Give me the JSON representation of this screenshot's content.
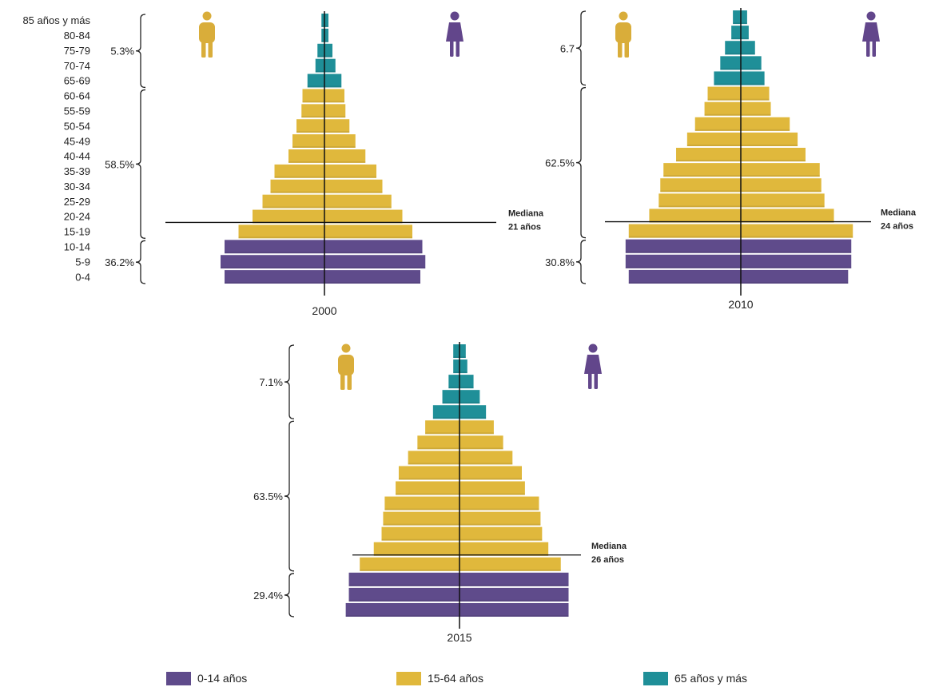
{
  "colors": {
    "young": "#5f4b8b",
    "working": "#e0b83c",
    "old": "#1f8f98",
    "male_icon": "#d9ad3a",
    "female_icon": "#62468b",
    "axis": "#111111"
  },
  "chart_data": {
    "type": "population-pyramid",
    "age_groups": [
      "85 años y más",
      "80-84",
      "75-79",
      "70-74",
      "65-69",
      "60-64",
      "55-59",
      "50-54",
      "45-49",
      "40-44",
      "35-39",
      "30-34",
      "25-29",
      "20-24",
      "15-19",
      "10-14",
      "5-9",
      "0-4"
    ],
    "series": [
      {
        "year": "2000",
        "left": [
          0.15,
          0.15,
          0.35,
          0.45,
          0.85,
          1.1,
          1.15,
          1.4,
          1.6,
          1.8,
          2.5,
          2.7,
          3.1,
          3.6,
          4.3,
          5.0,
          5.2,
          5.0
        ],
        "right": [
          0.2,
          0.2,
          0.4,
          0.55,
          0.85,
          1.0,
          1.05,
          1.25,
          1.55,
          2.05,
          2.6,
          2.9,
          3.35,
          3.9,
          4.4,
          4.9,
          5.05,
          4.8
        ],
        "brackets": [
          {
            "label": "5.3%",
            "from": "85 años y más",
            "to": "65-69"
          },
          {
            "label": "58.5%",
            "from": "60-64",
            "to": "15-19"
          },
          {
            "label": "36.2%",
            "from": "10-14",
            "to": "0-4"
          }
        ],
        "median_label": [
          "Mediana",
          "21 años"
        ],
        "median_at": "20-24"
      },
      {
        "year": "2010",
        "left": [
          0.25,
          0.3,
          0.5,
          0.65,
          0.85,
          1.05,
          1.15,
          1.45,
          1.7,
          2.05,
          2.45,
          2.55,
          2.6,
          2.9,
          3.55,
          3.65,
          3.65,
          3.55
        ],
        "right": [
          0.2,
          0.25,
          0.45,
          0.65,
          0.75,
          0.9,
          0.95,
          1.55,
          1.8,
          2.05,
          2.5,
          2.55,
          2.65,
          2.95,
          3.55,
          3.5,
          3.5,
          3.4
        ],
        "brackets": [
          {
            "label": "6.7",
            "from": "85 años y más",
            "to": "65-69"
          },
          {
            "label": "62.5%",
            "from": "60-64",
            "to": "15-19"
          },
          {
            "label": "30.8%",
            "from": "10-14",
            "to": "0-4"
          }
        ],
        "median_label": [
          "Mediana",
          "24 años"
        ],
        "median_at": "20-24"
      },
      {
        "year": "2015",
        "left": [
          0.2,
          0.2,
          0.35,
          0.55,
          0.85,
          1.1,
          1.35,
          1.65,
          1.95,
          2.05,
          2.4,
          2.45,
          2.5,
          2.75,
          3.2,
          3.55,
          3.55,
          3.65
        ],
        "right": [
          0.2,
          0.25,
          0.45,
          0.65,
          0.85,
          1.1,
          1.4,
          1.7,
          2.0,
          2.1,
          2.55,
          2.6,
          2.65,
          2.85,
          3.25,
          3.5,
          3.5,
          3.5
        ],
        "brackets": [
          {
            "label": "7.1%",
            "from": "85 años y más",
            "to": "65-69"
          },
          {
            "label": "63.5%",
            "from": "60-64",
            "to": "15-19"
          },
          {
            "label": "29.4%",
            "from": "10-14",
            "to": "0-4"
          }
        ],
        "median_label": [
          "Mediana",
          "26 años"
        ],
        "median_at": "20-24"
      }
    ],
    "legend": [
      "0-14 años",
      "15-64 años",
      "65 años y más"
    ]
  }
}
